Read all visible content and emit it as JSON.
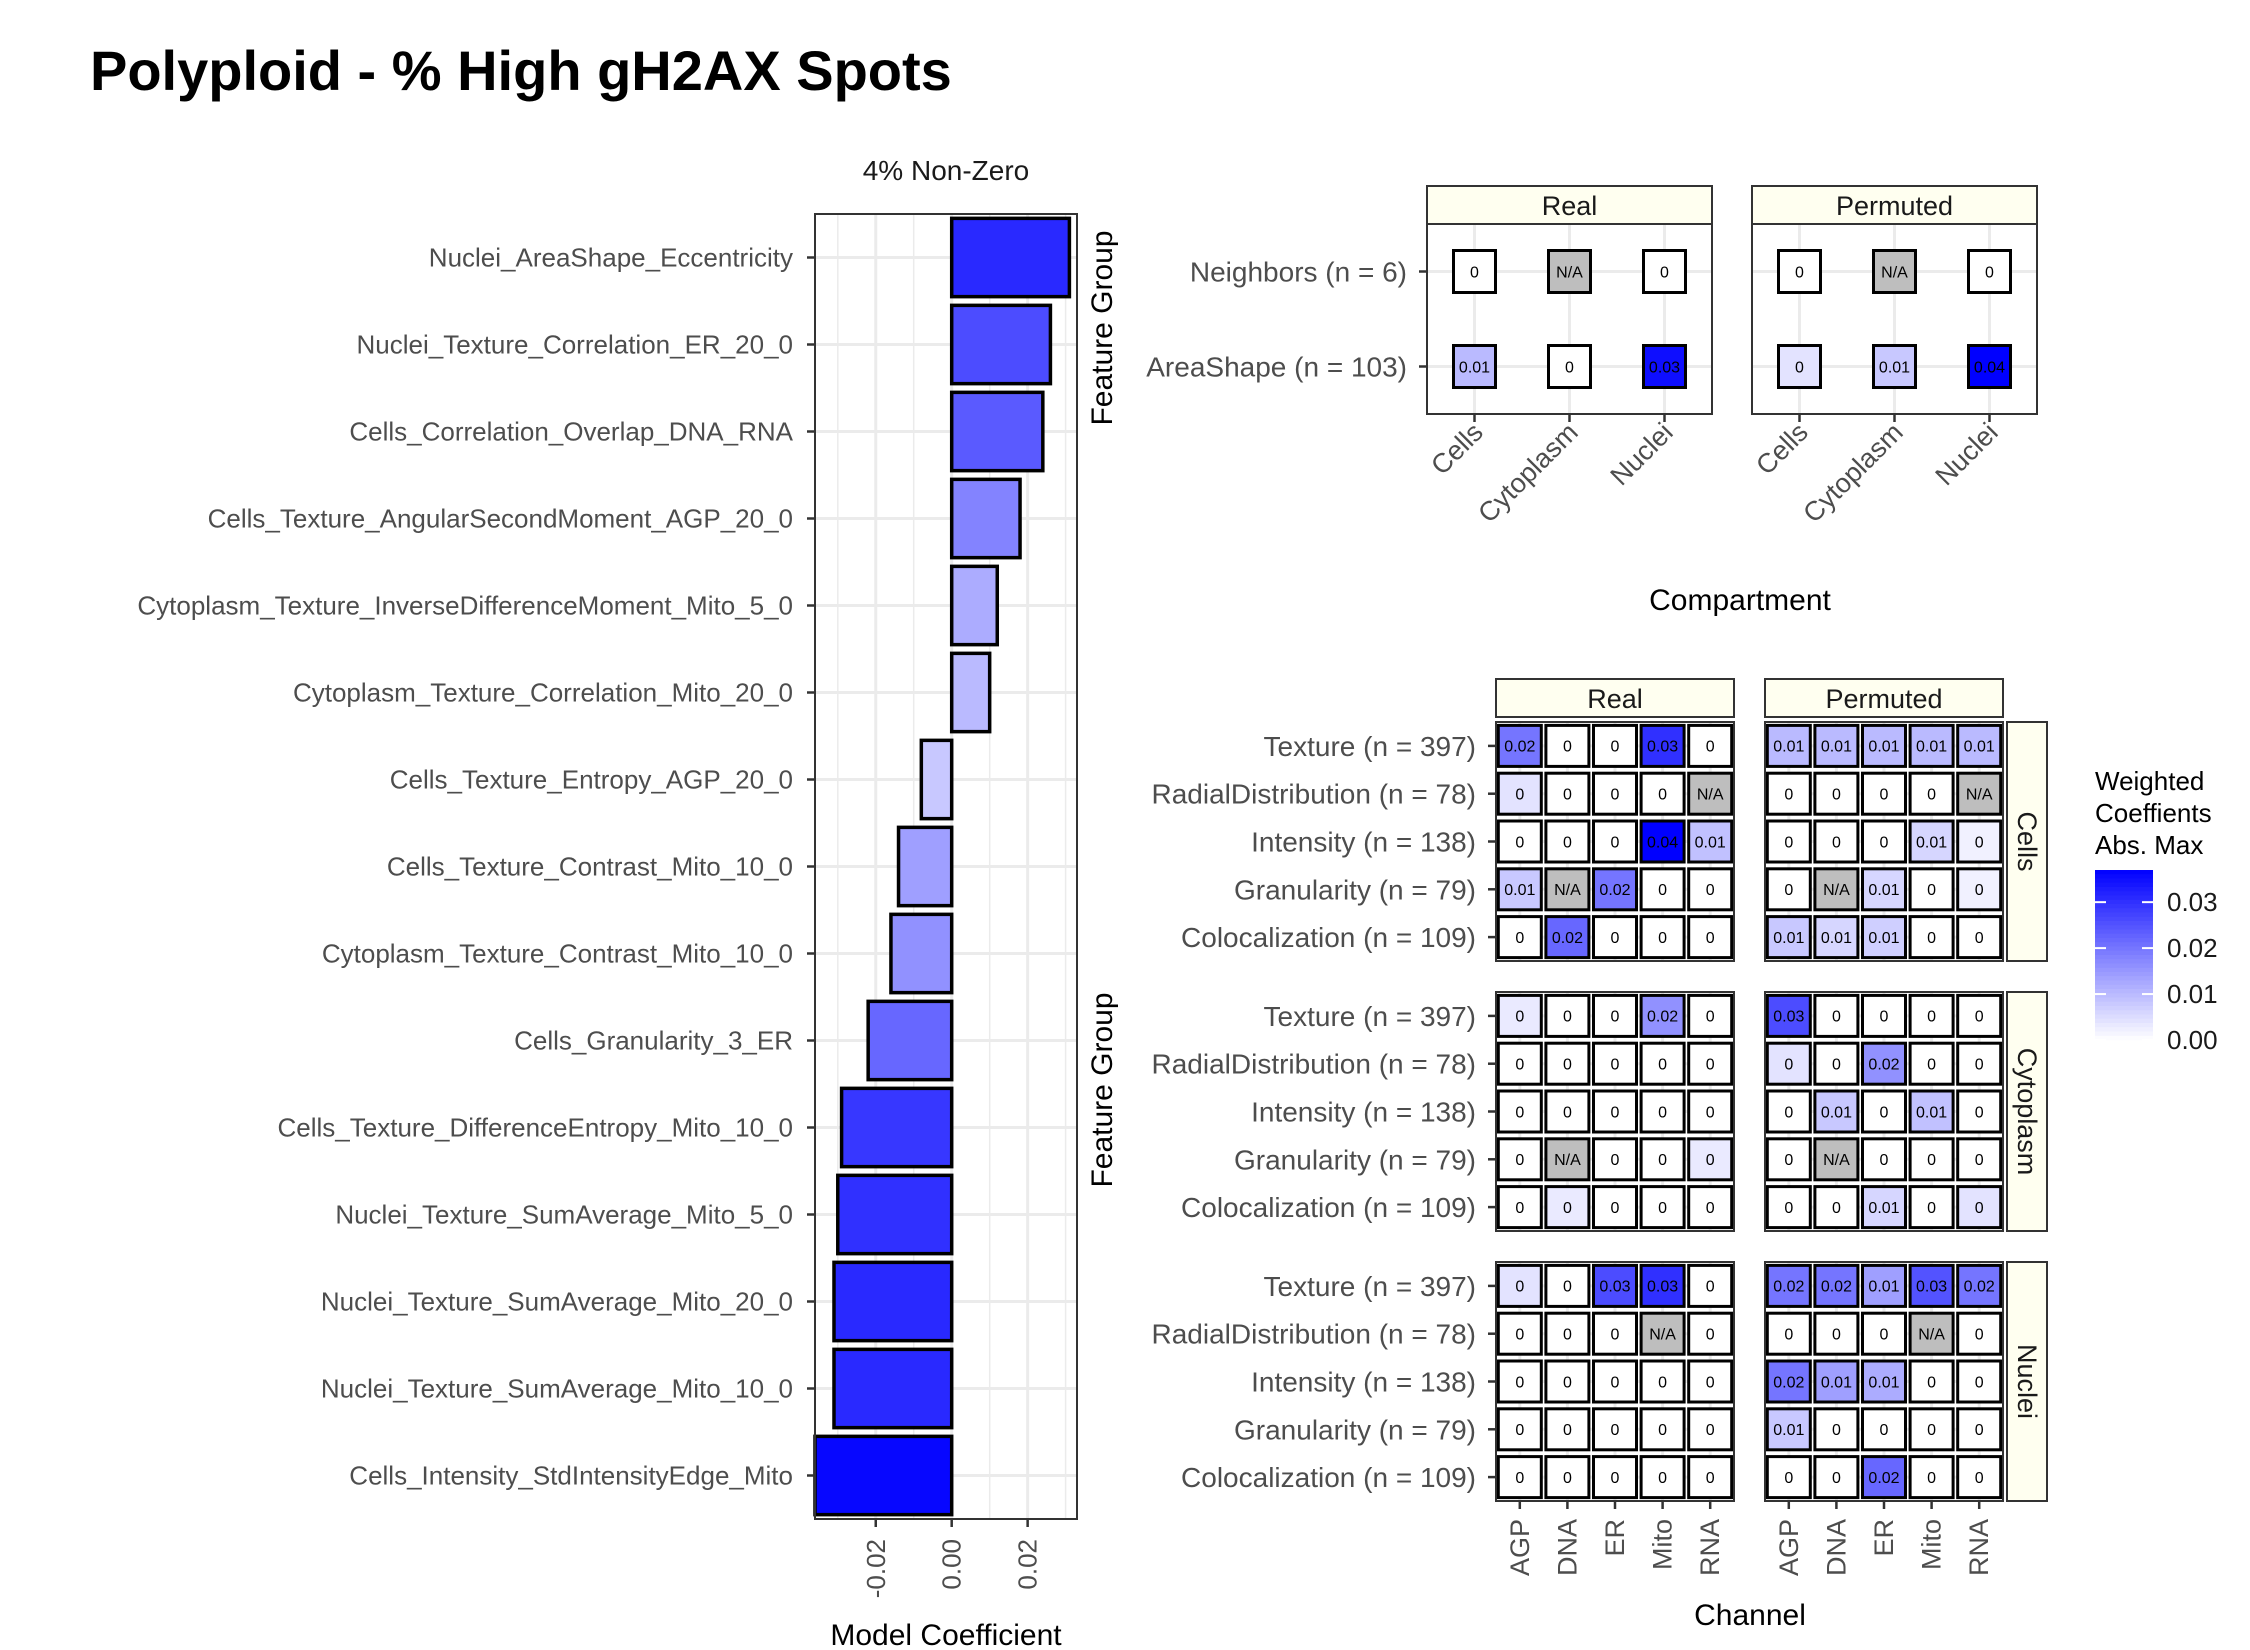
{
  "title": "Polyploid - % High gH2AX Spots",
  "colors": {
    "high": "#0000ff",
    "low": "#ffffff",
    "na": "#bebebe",
    "strip": "#fffff0",
    "grid": "#ebebeb"
  },
  "chart_data": [
    {
      "type": "bar",
      "orientation": "horizontal",
      "title": "4% Non-Zero",
      "xlabel": "Model Coefficient",
      "ylabel": "",
      "xlim": [
        -0.036,
        0.033
      ],
      "xticks": [
        "-0.02",
        "0.00",
        "0.02"
      ],
      "xtick_values": [
        -0.02,
        0.0,
        0.02
      ],
      "grid": true,
      "categories": [
        "Nuclei_AreaShape_Eccentricity",
        "Nuclei_Texture_Correlation_ER_20_0",
        "Cells_Correlation_Overlap_DNA_RNA",
        "Cells_Texture_AngularSecondMoment_AGP_20_0",
        "Cytoplasm_Texture_InverseDifferenceMoment_Mito_5_0",
        "Cytoplasm_Texture_Correlation_Mito_20_0",
        "Cells_Texture_Entropy_AGP_20_0",
        "Cells_Texture_Contrast_Mito_10_0",
        "Cytoplasm_Texture_Contrast_Mito_10_0",
        "Cells_Granularity_3_ER",
        "Cells_Texture_DifferenceEntropy_Mito_10_0",
        "Nuclei_Texture_SumAverage_Mito_5_0",
        "Nuclei_Texture_SumAverage_Mito_20_0",
        "Nuclei_Texture_SumAverage_Mito_10_0",
        "Cells_Intensity_StdIntensityEdge_Mito"
      ],
      "values": [
        0.031,
        0.026,
        0.024,
        0.018,
        0.012,
        0.01,
        -0.008,
        -0.014,
        -0.016,
        -0.022,
        -0.029,
        -0.03,
        -0.031,
        -0.031,
        -0.036
      ]
    },
    {
      "type": "heatmap",
      "xlabel": "Compartment",
      "ylabel": "Feature Group",
      "columns": [
        "Cells",
        "Cytoplasm",
        "Nuclei"
      ],
      "rows": [
        "Neighbors (n = 6)",
        "AreaShape (n = 103)"
      ],
      "panels": [
        {
          "name": "Real",
          "labels": [
            [
              "0",
              "N/A",
              "0"
            ],
            [
              "0.01",
              "0",
              "0.03"
            ]
          ],
          "values": [
            [
              0,
              null,
              0
            ],
            [
              0.01,
              0,
              0.035
            ]
          ]
        },
        {
          "name": "Permuted",
          "labels": [
            [
              "0",
              "N/A",
              "0"
            ],
            [
              "0",
              "0.01",
              "0.04"
            ]
          ],
          "values": [
            [
              0,
              null,
              0
            ],
            [
              0.004,
              0.008,
              0.037
            ]
          ]
        }
      ]
    },
    {
      "type": "heatmap",
      "xlabel": "Channel",
      "ylabel": "Feature Group",
      "columns": [
        "AGP",
        "DNA",
        "ER",
        "Mito",
        "RNA"
      ],
      "rows": [
        "Texture (n = 397)",
        "RadialDistribution (n = 78)",
        "Intensity (n = 138)",
        "Granularity (n = 79)",
        "Colocalization (n = 109)"
      ],
      "col_facets": [
        "Real",
        "Permuted"
      ],
      "row_facets": [
        "Cells",
        "Cytoplasm",
        "Nuclei"
      ],
      "panels": [
        {
          "facet": [
            "Cells",
            "Real"
          ],
          "labels": [
            [
              "0.02",
              "0",
              "0",
              "0.03",
              "0"
            ],
            [
              "0",
              "0",
              "0",
              "0",
              "N/A"
            ],
            [
              "0",
              "0",
              "0",
              "0.04",
              "0.01"
            ],
            [
              "0.01",
              "N/A",
              "0.02",
              "0",
              "0"
            ],
            [
              "0",
              "0.02",
              "0",
              "0",
              "0"
            ]
          ],
          "values": [
            [
              0.02,
              0,
              0,
              0.03,
              0
            ],
            [
              0.004,
              0,
              0,
              0,
              null
            ],
            [
              0,
              0,
              0,
              0.037,
              0.009
            ],
            [
              0.008,
              null,
              0.02,
              0,
              0
            ],
            [
              0,
              0.022,
              0,
              0,
              0
            ]
          ]
        },
        {
          "facet": [
            "Cells",
            "Permuted"
          ],
          "labels": [
            [
              "0.01",
              "0.01",
              "0.01",
              "0.01",
              "0.01"
            ],
            [
              "0",
              "0",
              "0",
              "0",
              "N/A"
            ],
            [
              "0",
              "0",
              "0",
              "0.01",
              "0"
            ],
            [
              "0",
              "N/A",
              "0.01",
              "0",
              "0"
            ],
            [
              "0.01",
              "0.01",
              "0.01",
              "0",
              "0"
            ]
          ],
          "values": [
            [
              0.01,
              0.01,
              0.01,
              0.01,
              0.01
            ],
            [
              0,
              0,
              0,
              0,
              null
            ],
            [
              0,
              0,
              0,
              0.006,
              0.002
            ],
            [
              0,
              null,
              0.006,
              0,
              0.002
            ],
            [
              0.008,
              0.006,
              0.007,
              0,
              0
            ]
          ]
        },
        {
          "facet": [
            "Cytoplasm",
            "Real"
          ],
          "labels": [
            [
              "0",
              "0",
              "0",
              "0.02",
              "0"
            ],
            [
              "0",
              "0",
              "0",
              "0",
              "0"
            ],
            [
              "0",
              "0",
              "0",
              "0",
              "0"
            ],
            [
              "0",
              "N/A",
              "0",
              "0",
              "0"
            ],
            [
              "0",
              "0",
              "0",
              "0",
              "0"
            ]
          ],
          "values": [
            [
              0.003,
              0,
              0,
              0.016,
              0
            ],
            [
              0,
              0,
              0,
              0,
              0
            ],
            [
              0,
              0,
              0,
              0,
              0
            ],
            [
              0,
              null,
              0,
              0,
              0.003
            ],
            [
              0,
              0.003,
              0,
              0,
              0
            ]
          ]
        },
        {
          "facet": [
            "Cytoplasm",
            "Permuted"
          ],
          "labels": [
            [
              "0.03",
              "0",
              "0",
              "0",
              "0"
            ],
            [
              "0",
              "0",
              "0.02",
              "0",
              "0"
            ],
            [
              "0",
              "0.01",
              "0",
              "0.01",
              "0"
            ],
            [
              "0",
              "N/A",
              "0",
              "0",
              "0"
            ],
            [
              "0",
              "0",
              "0.01",
              "0",
              "0"
            ]
          ],
          "values": [
            [
              0.026,
              0,
              0,
              0,
              0
            ],
            [
              0.004,
              0,
              0.016,
              0,
              0
            ],
            [
              0,
              0.008,
              0,
              0.009,
              0
            ],
            [
              0,
              null,
              0,
              0,
              0
            ],
            [
              0,
              0,
              0.006,
              0,
              0.004
            ]
          ]
        },
        {
          "facet": [
            "Nuclei",
            "Real"
          ],
          "labels": [
            [
              "0",
              "0",
              "0.03",
              "0.03",
              "0"
            ],
            [
              "0",
              "0",
              "0",
              "N/A",
              "0"
            ],
            [
              "0",
              "0",
              "0",
              "0",
              "0"
            ],
            [
              "0",
              "0",
              "0",
              "0",
              "0"
            ],
            [
              "0",
              "0",
              "0",
              "0",
              "0"
            ]
          ],
          "values": [
            [
              0.004,
              0,
              0.026,
              0.03,
              0
            ],
            [
              0,
              0,
              0,
              null,
              0
            ],
            [
              0,
              0,
              0,
              0,
              0
            ],
            [
              0,
              0,
              0,
              0,
              0
            ],
            [
              0,
              0,
              0,
              0,
              0
            ]
          ]
        },
        {
          "facet": [
            "Nuclei",
            "Permuted"
          ],
          "labels": [
            [
              "0.02",
              "0.02",
              "0.01",
              "0.03",
              "0.02"
            ],
            [
              "0",
              "0",
              "0",
              "N/A",
              "0"
            ],
            [
              "0.02",
              "0.01",
              "0.01",
              "0",
              "0"
            ],
            [
              "0.01",
              "0",
              "0",
              "0",
              "0"
            ],
            [
              "0",
              "0",
              "0.02",
              "0",
              "0"
            ]
          ],
          "values": [
            [
              0.02,
              0.02,
              0.014,
              0.025,
              0.02
            ],
            [
              0,
              0,
              0,
              null,
              0
            ],
            [
              0.02,
              0.014,
              0.012,
              0,
              0
            ],
            [
              0.008,
              0,
              0,
              0,
              0
            ],
            [
              0,
              0,
              0.022,
              0,
              0
            ]
          ]
        }
      ]
    }
  ],
  "legend": {
    "title": [
      "Weighted",
      "Coeffients",
      "Abs. Max"
    ],
    "ticks": [
      "0.03",
      "0.02",
      "0.01",
      "0.00"
    ],
    "tick_values": [
      0.03,
      0.02,
      0.01,
      0.0
    ],
    "range": [
      0,
      0.037
    ],
    "placement": "right"
  }
}
